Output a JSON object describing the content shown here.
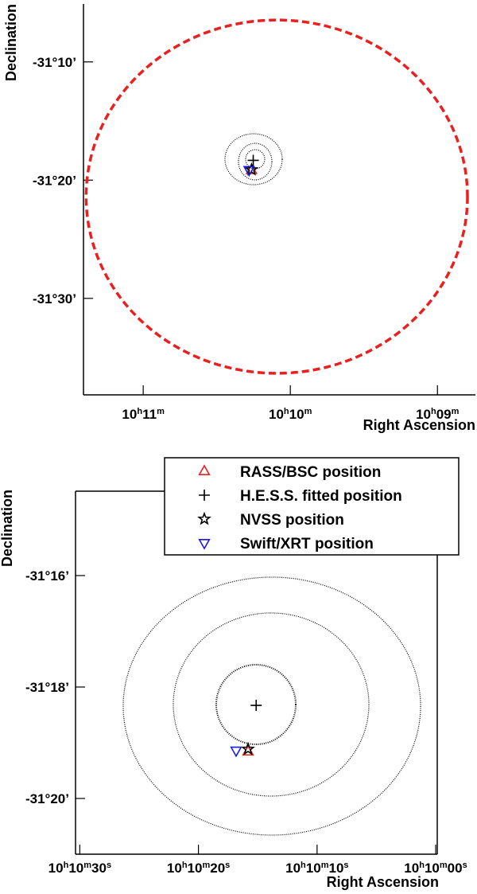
{
  "chart_data": [
    {
      "type": "scatter",
      "x_label": "Right Ascension",
      "y_label": "Declination",
      "xlim": [
        10.1901,
        10.1457
      ],
      "ylim": [
        -31.636,
        -31.085
      ],
      "xticks": [
        {
          "value": 10.183333,
          "label": "10h11m"
        },
        {
          "value": 10.166667,
          "label": "10h10m"
        },
        {
          "value": 10.15,
          "label": "10h09m"
        }
      ],
      "yticks": [
        {
          "value": -31.166667,
          "label": "-31°10’"
        },
        {
          "value": -31.333333,
          "label": "-31°20’"
        },
        {
          "value": -31.5,
          "label": "-31°30’"
        }
      ],
      "fov": {
        "x": 10.1682,
        "y": -31.3566,
        "rx": 0.0216,
        "ry": 0.249,
        "color": "#e8201f"
      },
      "series": [
        {
          "color": "#e8201f",
          "marker": "triangle-up",
          "x": [
            10.17106
          ],
          "y": [
            -31.3193
          ]
        },
        {
          "color": "#000000",
          "marker": "plus",
          "x": [
            10.17087
          ],
          "y": [
            -31.30548
          ]
        },
        {
          "color": "#000000",
          "marker": "star",
          "x": [
            10.17106
          ],
          "y": [
            -31.31857
          ]
        },
        {
          "color": "#1a1adb",
          "marker": "triangle-down",
          "x": [
            10.17134
          ],
          "y": [
            -31.319
          ]
        }
      ]
    },
    {
      "type": "scatter",
      "x_label": "Right Ascension",
      "y_label": "Declination",
      "xlim": [
        10.1751,
        10.16663
      ],
      "ylim": [
        -31.35,
        -31.24143
      ],
      "xticks": [
        {
          "value": 10.175,
          "label": "10h10m30s"
        },
        {
          "value": 10.172222,
          "label": "10h10m20s"
        },
        {
          "value": 10.169444,
          "label": "10h10m10s"
        },
        {
          "value": 10.166667,
          "label": "10h10m00s"
        }
      ],
      "yticks": [
        {
          "value": -31.266667,
          "label": "-31°16’"
        },
        {
          "value": -31.3,
          "label": "-31°18’"
        },
        {
          "value": -31.333333,
          "label": "-31°20’"
        }
      ],
      "legend": "top-right",
      "series": [
        {
          "name": "RASS/BSC position",
          "color": "#e8201f",
          "marker": "triangle-up",
          "x": [
            10.17106
          ],
          "y": [
            -31.3193
          ]
        },
        {
          "name": "H.E.S.S. fitted position",
          "color": "#000000",
          "marker": "plus",
          "x": [
            10.17087
          ],
          "y": [
            -31.30548
          ]
        },
        {
          "name": "NVSS position",
          "color": "#000000",
          "marker": "star",
          "x": [
            10.17106
          ],
          "y": [
            -31.31857
          ]
        },
        {
          "name": "Swift/XRT position",
          "color": "#1a1adb",
          "marker": "triangle-down",
          "x": [
            10.17134
          ],
          "y": [
            -31.319
          ]
        }
      ]
    }
  ]
}
